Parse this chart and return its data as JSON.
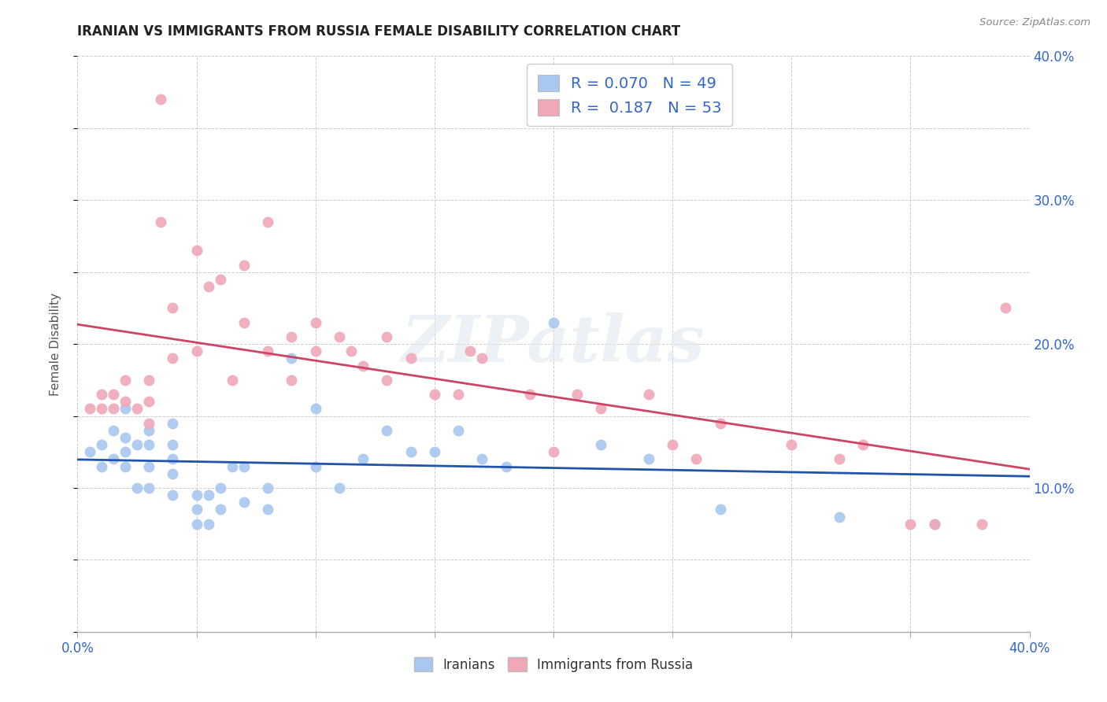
{
  "title": "IRANIAN VS IMMIGRANTS FROM RUSSIA FEMALE DISABILITY CORRELATION CHART",
  "source": "Source: ZipAtlas.com",
  "ylabel": "Female Disability",
  "xlabel": "",
  "xlim": [
    0.0,
    0.4
  ],
  "ylim": [
    0.0,
    0.4
  ],
  "x_ticks": [
    0.0,
    0.05,
    0.1,
    0.15,
    0.2,
    0.25,
    0.3,
    0.35,
    0.4
  ],
  "y_ticks": [
    0.0,
    0.05,
    0.1,
    0.15,
    0.2,
    0.25,
    0.3,
    0.35,
    0.4
  ],
  "iranian_color": "#a8c8f0",
  "russian_color": "#f0a8b8",
  "iranian_line_color": "#2255aa",
  "russian_line_color": "#cc4466",
  "legend_R_iranian": "0.070",
  "legend_N_iranian": "49",
  "legend_R_russian": "0.187",
  "legend_N_russian": "53",
  "watermark_text": "ZIPatlas",
  "background_color": "#ffffff",
  "grid_color": "#cccccc",
  "iranians_x": [
    0.005,
    0.01,
    0.01,
    0.015,
    0.015,
    0.02,
    0.02,
    0.02,
    0.02,
    0.025,
    0.025,
    0.03,
    0.03,
    0.03,
    0.03,
    0.04,
    0.04,
    0.04,
    0.04,
    0.04,
    0.05,
    0.05,
    0.05,
    0.055,
    0.055,
    0.06,
    0.06,
    0.065,
    0.07,
    0.07,
    0.08,
    0.08,
    0.09,
    0.1,
    0.1,
    0.11,
    0.12,
    0.13,
    0.14,
    0.15,
    0.16,
    0.17,
    0.18,
    0.2,
    0.22,
    0.24,
    0.27,
    0.32,
    0.36
  ],
  "iranians_y": [
    0.125,
    0.13,
    0.115,
    0.14,
    0.12,
    0.155,
    0.135,
    0.125,
    0.115,
    0.13,
    0.1,
    0.14,
    0.13,
    0.115,
    0.1,
    0.145,
    0.13,
    0.12,
    0.11,
    0.095,
    0.095,
    0.085,
    0.075,
    0.095,
    0.075,
    0.1,
    0.085,
    0.115,
    0.115,
    0.09,
    0.1,
    0.085,
    0.19,
    0.155,
    0.115,
    0.1,
    0.12,
    0.14,
    0.125,
    0.125,
    0.14,
    0.12,
    0.115,
    0.215,
    0.13,
    0.12,
    0.085,
    0.08,
    0.075
  ],
  "russians_x": [
    0.005,
    0.01,
    0.01,
    0.015,
    0.015,
    0.02,
    0.02,
    0.025,
    0.03,
    0.03,
    0.03,
    0.035,
    0.035,
    0.04,
    0.04,
    0.05,
    0.05,
    0.055,
    0.06,
    0.065,
    0.07,
    0.07,
    0.08,
    0.08,
    0.09,
    0.09,
    0.1,
    0.1,
    0.11,
    0.115,
    0.12,
    0.13,
    0.13,
    0.14,
    0.15,
    0.16,
    0.165,
    0.17,
    0.19,
    0.2,
    0.21,
    0.22,
    0.24,
    0.25,
    0.26,
    0.27,
    0.3,
    0.32,
    0.33,
    0.35,
    0.36,
    0.38,
    0.39
  ],
  "russians_y": [
    0.155,
    0.165,
    0.155,
    0.165,
    0.155,
    0.175,
    0.16,
    0.155,
    0.175,
    0.16,
    0.145,
    0.37,
    0.285,
    0.225,
    0.19,
    0.265,
    0.195,
    0.24,
    0.245,
    0.175,
    0.255,
    0.215,
    0.285,
    0.195,
    0.205,
    0.175,
    0.215,
    0.195,
    0.205,
    0.195,
    0.185,
    0.205,
    0.175,
    0.19,
    0.165,
    0.165,
    0.195,
    0.19,
    0.165,
    0.125,
    0.165,
    0.155,
    0.165,
    0.13,
    0.12,
    0.145,
    0.13,
    0.12,
    0.13,
    0.075,
    0.075,
    0.075,
    0.225
  ]
}
